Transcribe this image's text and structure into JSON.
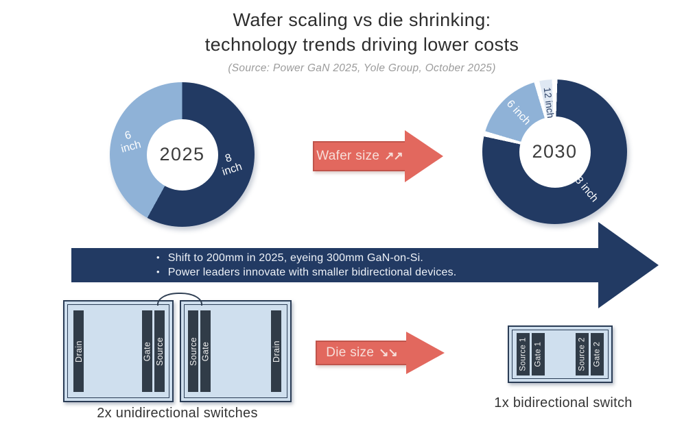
{
  "title": {
    "line1": "Wafer scaling vs die shrinking:",
    "line2": "technology trends driving lower costs"
  },
  "source_note": "(Source: Power GaN 2025, Yole Group, October 2025)",
  "colors": {
    "navy": "#223a63",
    "light_blue": "#8fb2d7",
    "pale_blue": "#dfe8f3",
    "red": "#e2685e",
    "bar_dark": "#313c48",
    "switch_fill": "#cfdfee"
  },
  "wafer_arrow": {
    "label": "Wafer size",
    "trend_icon": "↗↗"
  },
  "die_arrow": {
    "label": "Die size",
    "trend_icon": "↘↘"
  },
  "roadmap": {
    "bullets": [
      "Shift to 200mm in 2025, eyeing 300mm GaN-on-Si.",
      "Power leaders innovate with smaller bidirectional devices."
    ]
  },
  "unidirectional": {
    "caption": "2x unidirectional switches",
    "switches": [
      {
        "bars": [
          "Drain",
          "Gate",
          "Source"
        ]
      },
      {
        "bars": [
          "Source",
          "Gate",
          "Drain"
        ]
      }
    ]
  },
  "bidirectional": {
    "caption": "1x bidirectional switch",
    "bars": [
      "Source 1",
      "Gate 1",
      "Source 2",
      "Gate 2"
    ]
  },
  "chart_data": [
    {
      "type": "donut",
      "title": "2025",
      "center_label": "2025",
      "labels": [
        "8 inch",
        "6 inch"
      ],
      "values": [
        58,
        42
      ],
      "colors": [
        "#223a63",
        "#8fb2d7"
      ],
      "segment_gap_percent": 0,
      "legend_position": "on-slice"
    },
    {
      "type": "donut",
      "title": "2030",
      "center_label": "2030",
      "labels": [
        "8 inch",
        "6 inch",
        "12 inch"
      ],
      "values": [
        79,
        17,
        4
      ],
      "colors": [
        "#223a63",
        "#8fb2d7",
        "#dfe8f3"
      ],
      "segment_gap_percent": 1.2,
      "legend_position": "on-slice"
    }
  ]
}
